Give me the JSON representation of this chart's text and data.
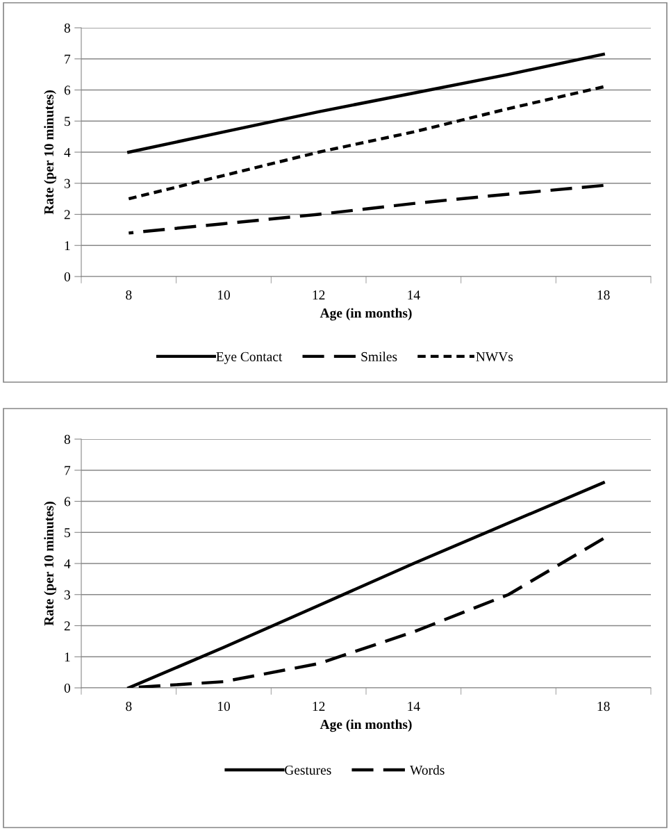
{
  "chart_data": [
    {
      "type": "line",
      "xlabel": "Age (in months)",
      "ylabel": "Rate (per 10 minutes)",
      "categories": [
        "8",
        "10",
        "12",
        "14",
        null,
        "18"
      ],
      "ylim": [
        0,
        8
      ],
      "yticks": [
        0,
        1,
        2,
        3,
        4,
        5,
        6,
        7,
        8
      ],
      "grid": "y",
      "legend": "bottom",
      "marker": "none",
      "series": [
        {
          "name": "Eye Contact",
          "color": "#000000",
          "line_style": "solid",
          "values": [
            4.0,
            4.65,
            5.3,
            5.9,
            6.5,
            7.15
          ]
        },
        {
          "name": "Smiles",
          "color": "#000000",
          "line_style": "dashed",
          "values": [
            1.4,
            1.7,
            2.0,
            2.35,
            2.65,
            2.93
          ]
        },
        {
          "name": "NWVs",
          "color": "#000000",
          "line_style": "dotted",
          "values": [
            2.5,
            3.25,
            4.0,
            4.65,
            5.4,
            6.1
          ]
        }
      ]
    },
    {
      "type": "line",
      "xlabel": "Age (in months)",
      "ylabel": "Rate (per 10 minutes)",
      "categories": [
        "8",
        "10",
        "12",
        "14",
        null,
        "18"
      ],
      "ylim": [
        0,
        8
      ],
      "yticks": [
        0,
        1,
        2,
        3,
        4,
        5,
        6,
        7,
        8
      ],
      "grid": "y",
      "legend": "bottom",
      "marker": "none",
      "series": [
        {
          "name": "Gestures",
          "color": "#000000",
          "line_style": "solid",
          "values": [
            0,
            1.3,
            2.65,
            4.0,
            5.3,
            6.6
          ]
        },
        {
          "name": "Words",
          "color": "#000000",
          "line_style": "dashed",
          "values": [
            0,
            0.2,
            0.78,
            1.8,
            3.0,
            4.8
          ]
        }
      ]
    }
  ]
}
